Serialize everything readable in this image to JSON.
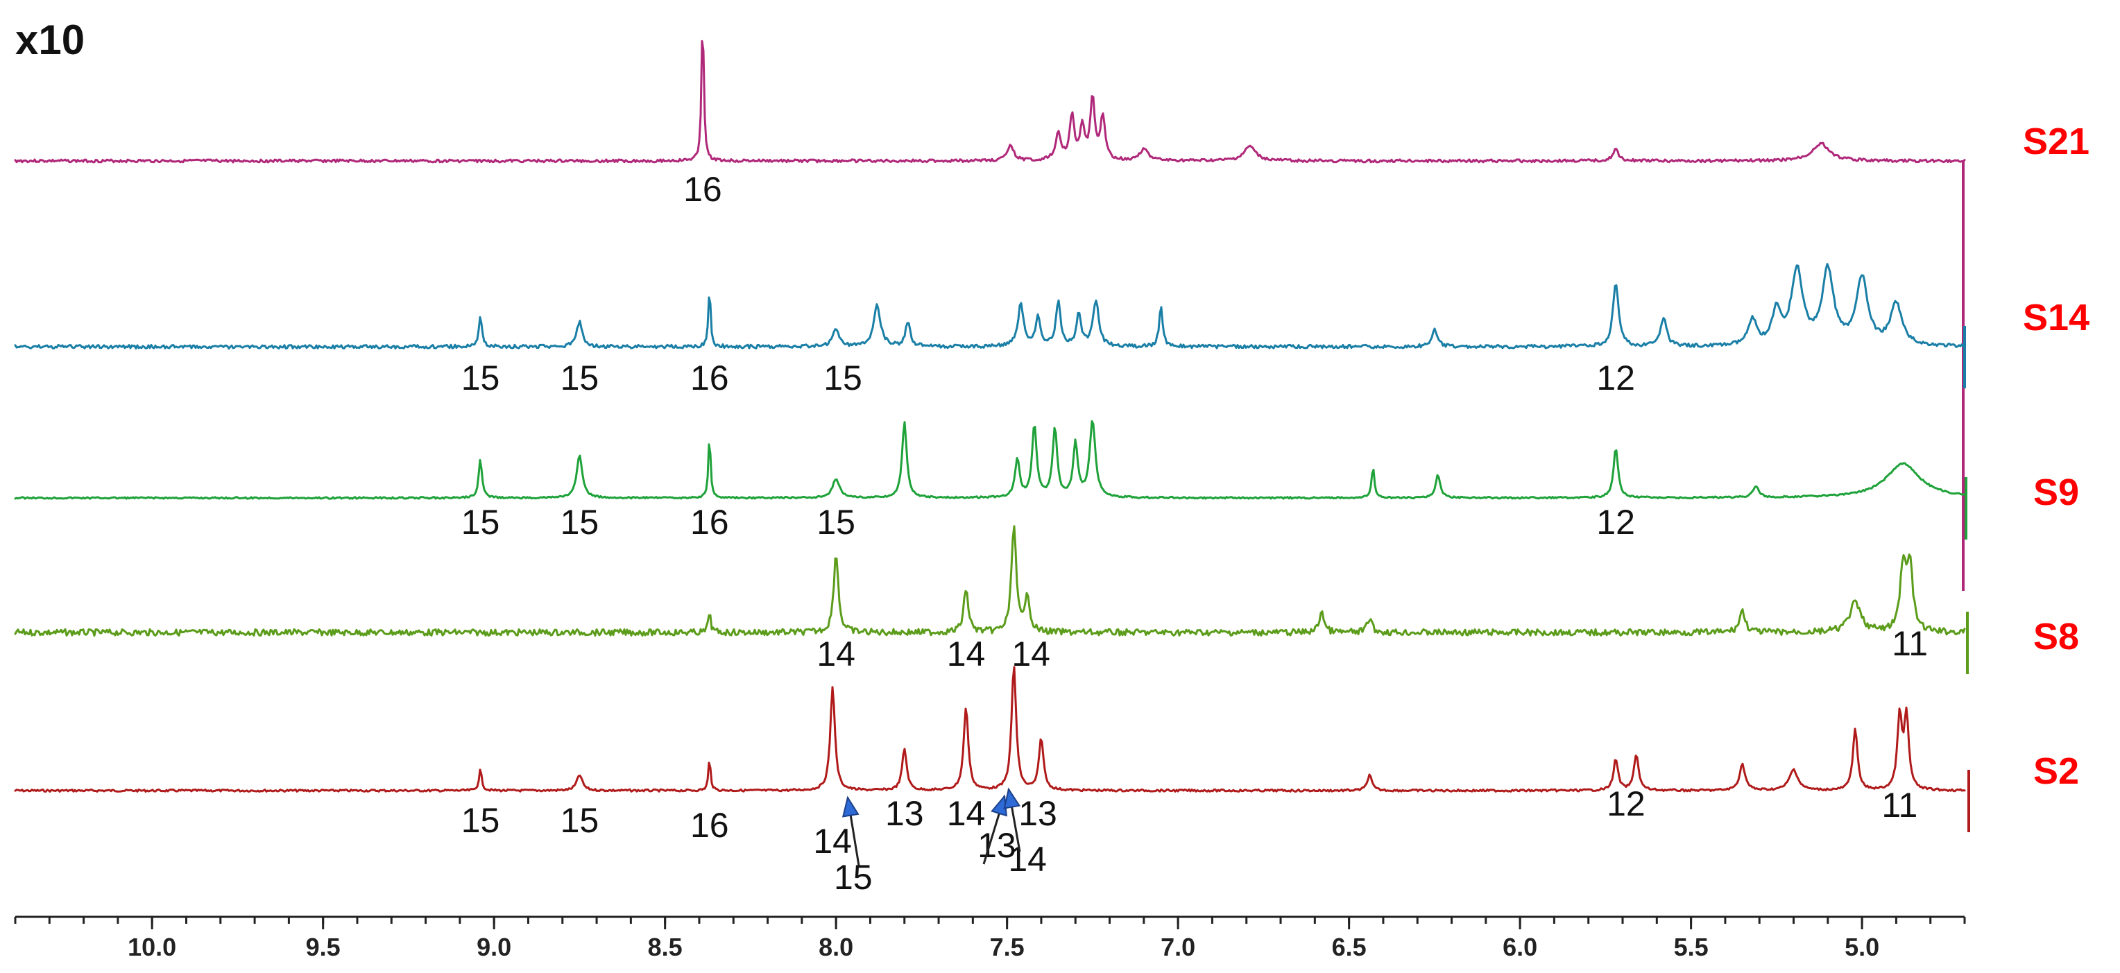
{
  "chart_data": {
    "type": "line",
    "scale_label": "x10",
    "x_axis": {
      "range": [
        10.4,
        4.7
      ],
      "reversed": true,
      "ticks": [
        10.0,
        9.5,
        9.0,
        8.5,
        8.0,
        7.5,
        7.0,
        6.5,
        6.0,
        5.5,
        5.0
      ],
      "tick_labels": [
        "10.0",
        "9.5",
        "9.0",
        "8.5",
        "8.0",
        "7.5",
        "7.0",
        "6.5",
        "6.0",
        "5.5",
        "5.0"
      ]
    },
    "series": [
      {
        "name": "S21",
        "color": "#b0287a",
        "peaks": [
          {
            "x": 8.39,
            "h": 1.0,
            "w": 0.004
          },
          {
            "x": 7.49,
            "h": 0.1,
            "w": 0.012
          },
          {
            "x": 7.35,
            "h": 0.18,
            "w": 0.01
          },
          {
            "x": 7.31,
            "h": 0.3,
            "w": 0.008
          },
          {
            "x": 7.28,
            "h": 0.22,
            "w": 0.008
          },
          {
            "x": 7.25,
            "h": 0.42,
            "w": 0.008
          },
          {
            "x": 7.22,
            "h": 0.3,
            "w": 0.008
          },
          {
            "x": 7.1,
            "h": 0.08,
            "w": 0.015
          },
          {
            "x": 6.79,
            "h": 0.1,
            "w": 0.02
          },
          {
            "x": 5.72,
            "h": 0.08,
            "w": 0.01
          },
          {
            "x": 5.12,
            "h": 0.12,
            "w": 0.03
          }
        ],
        "labels": [
          {
            "text": "16",
            "x": 8.39
          }
        ]
      },
      {
        "name": "S14",
        "color": "#1a7fa6",
        "peaks": [
          {
            "x": 9.04,
            "h": 0.35,
            "w": 0.006
          },
          {
            "x": 8.75,
            "h": 0.3,
            "w": 0.01
          },
          {
            "x": 8.37,
            "h": 0.7,
            "w": 0.004
          },
          {
            "x": 8.0,
            "h": 0.2,
            "w": 0.012
          },
          {
            "x": 7.88,
            "h": 0.5,
            "w": 0.012
          },
          {
            "x": 7.79,
            "h": 0.3,
            "w": 0.008
          },
          {
            "x": 7.46,
            "h": 0.5,
            "w": 0.01
          },
          {
            "x": 7.41,
            "h": 0.35,
            "w": 0.008
          },
          {
            "x": 7.35,
            "h": 0.55,
            "w": 0.008
          },
          {
            "x": 7.29,
            "h": 0.4,
            "w": 0.008
          },
          {
            "x": 7.24,
            "h": 0.55,
            "w": 0.01
          },
          {
            "x": 7.05,
            "h": 0.5,
            "w": 0.006
          },
          {
            "x": 6.25,
            "h": 0.2,
            "w": 0.01
          },
          {
            "x": 5.72,
            "h": 0.75,
            "w": 0.01
          },
          {
            "x": 5.58,
            "h": 0.35,
            "w": 0.01
          },
          {
            "x": 5.32,
            "h": 0.3,
            "w": 0.015
          },
          {
            "x": 5.25,
            "h": 0.4,
            "w": 0.015
          },
          {
            "x": 5.19,
            "h": 0.9,
            "w": 0.02
          },
          {
            "x": 5.1,
            "h": 0.9,
            "w": 0.02
          },
          {
            "x": 5.0,
            "h": 0.8,
            "w": 0.02
          },
          {
            "x": 4.9,
            "h": 0.5,
            "w": 0.02
          }
        ],
        "labels": [
          {
            "text": "15",
            "x": 9.04
          },
          {
            "text": "15",
            "x": 8.75
          },
          {
            "text": "16",
            "x": 8.37
          },
          {
            "text": "15",
            "x": 7.98
          },
          {
            "text": "12",
            "x": 5.72
          }
        ]
      },
      {
        "name": "S9",
        "color": "#1fa23a",
        "peaks": [
          {
            "x": 9.04,
            "h": 0.5,
            "w": 0.006
          },
          {
            "x": 8.75,
            "h": 0.55,
            "w": 0.01
          },
          {
            "x": 8.37,
            "h": 0.8,
            "w": 0.004
          },
          {
            "x": 8.0,
            "h": 0.25,
            "w": 0.012
          },
          {
            "x": 7.8,
            "h": 1.0,
            "w": 0.008
          },
          {
            "x": 7.47,
            "h": 0.5,
            "w": 0.008
          },
          {
            "x": 7.42,
            "h": 0.95,
            "w": 0.008
          },
          {
            "x": 7.36,
            "h": 0.9,
            "w": 0.008
          },
          {
            "x": 7.3,
            "h": 0.7,
            "w": 0.008
          },
          {
            "x": 7.25,
            "h": 1.0,
            "w": 0.01
          },
          {
            "x": 6.43,
            "h": 0.4,
            "w": 0.005
          },
          {
            "x": 6.24,
            "h": 0.3,
            "w": 0.008
          },
          {
            "x": 5.72,
            "h": 0.65,
            "w": 0.008
          },
          {
            "x": 5.31,
            "h": 0.15,
            "w": 0.01
          },
          {
            "x": 4.88,
            "h": 0.45,
            "w": 0.06
          }
        ],
        "labels": [
          {
            "text": "15",
            "x": 9.04
          },
          {
            "text": "15",
            "x": 8.75
          },
          {
            "text": "16",
            "x": 8.37
          },
          {
            "text": "15",
            "x": 8.0
          },
          {
            "text": "12",
            "x": 5.72
          }
        ]
      },
      {
        "name": "S8",
        "color": "#5b9c1a",
        "peaks": [
          {
            "x": 8.37,
            "h": 0.3,
            "w": 0.004
          },
          {
            "x": 8.0,
            "h": 1.1,
            "w": 0.008
          },
          {
            "x": 7.62,
            "h": 0.6,
            "w": 0.008
          },
          {
            "x": 7.48,
            "h": 1.5,
            "w": 0.008
          },
          {
            "x": 7.44,
            "h": 0.5,
            "w": 0.008
          },
          {
            "x": 6.58,
            "h": 0.3,
            "w": 0.008
          },
          {
            "x": 6.44,
            "h": 0.2,
            "w": 0.008
          },
          {
            "x": 5.35,
            "h": 0.3,
            "w": 0.01
          },
          {
            "x": 5.02,
            "h": 0.4,
            "w": 0.02
          },
          {
            "x": 4.88,
            "h": 0.9,
            "w": 0.01
          },
          {
            "x": 4.86,
            "h": 0.9,
            "w": 0.01
          }
        ],
        "labels": [
          {
            "text": "14",
            "x": 8.0
          },
          {
            "text": "14",
            "x": 7.62
          },
          {
            "text": "14",
            "x": 7.43
          },
          {
            "text": "11",
            "x": 4.86
          }
        ]
      },
      {
        "name": "S2",
        "color": "#b01a1a",
        "peaks": [
          {
            "x": 9.04,
            "h": 0.2,
            "w": 0.005
          },
          {
            "x": 8.75,
            "h": 0.15,
            "w": 0.01
          },
          {
            "x": 8.37,
            "h": 0.3,
            "w": 0.004
          },
          {
            "x": 8.01,
            "h": 1.0,
            "w": 0.008
          },
          {
            "x": 7.8,
            "h": 0.4,
            "w": 0.008
          },
          {
            "x": 7.62,
            "h": 0.8,
            "w": 0.008
          },
          {
            "x": 7.48,
            "h": 1.2,
            "w": 0.008
          },
          {
            "x": 7.4,
            "h": 0.5,
            "w": 0.008
          },
          {
            "x": 6.44,
            "h": 0.15,
            "w": 0.008
          },
          {
            "x": 5.72,
            "h": 0.3,
            "w": 0.008
          },
          {
            "x": 5.66,
            "h": 0.35,
            "w": 0.008
          },
          {
            "x": 5.35,
            "h": 0.25,
            "w": 0.01
          },
          {
            "x": 5.2,
            "h": 0.2,
            "w": 0.015
          },
          {
            "x": 5.02,
            "h": 0.6,
            "w": 0.008
          },
          {
            "x": 4.89,
            "h": 0.7,
            "w": 0.008
          },
          {
            "x": 4.87,
            "h": 0.7,
            "w": 0.008
          }
        ],
        "labels": [
          {
            "text": "15",
            "x": 9.04
          },
          {
            "text": "15",
            "x": 8.75
          },
          {
            "text": "16",
            "x": 8.37
          },
          {
            "text": "14",
            "x": 8.01
          },
          {
            "text": "15",
            "x": 7.95
          },
          {
            "text": "13",
            "x": 7.8
          },
          {
            "text": "14",
            "x": 7.62
          },
          {
            "text": "13",
            "x": 7.53
          },
          {
            "text": "13",
            "x": 7.41
          },
          {
            "text": "14",
            "x": 7.44
          },
          {
            "text": "12",
            "x": 5.69
          },
          {
            "text": "11",
            "x": 4.89
          }
        ]
      }
    ]
  }
}
